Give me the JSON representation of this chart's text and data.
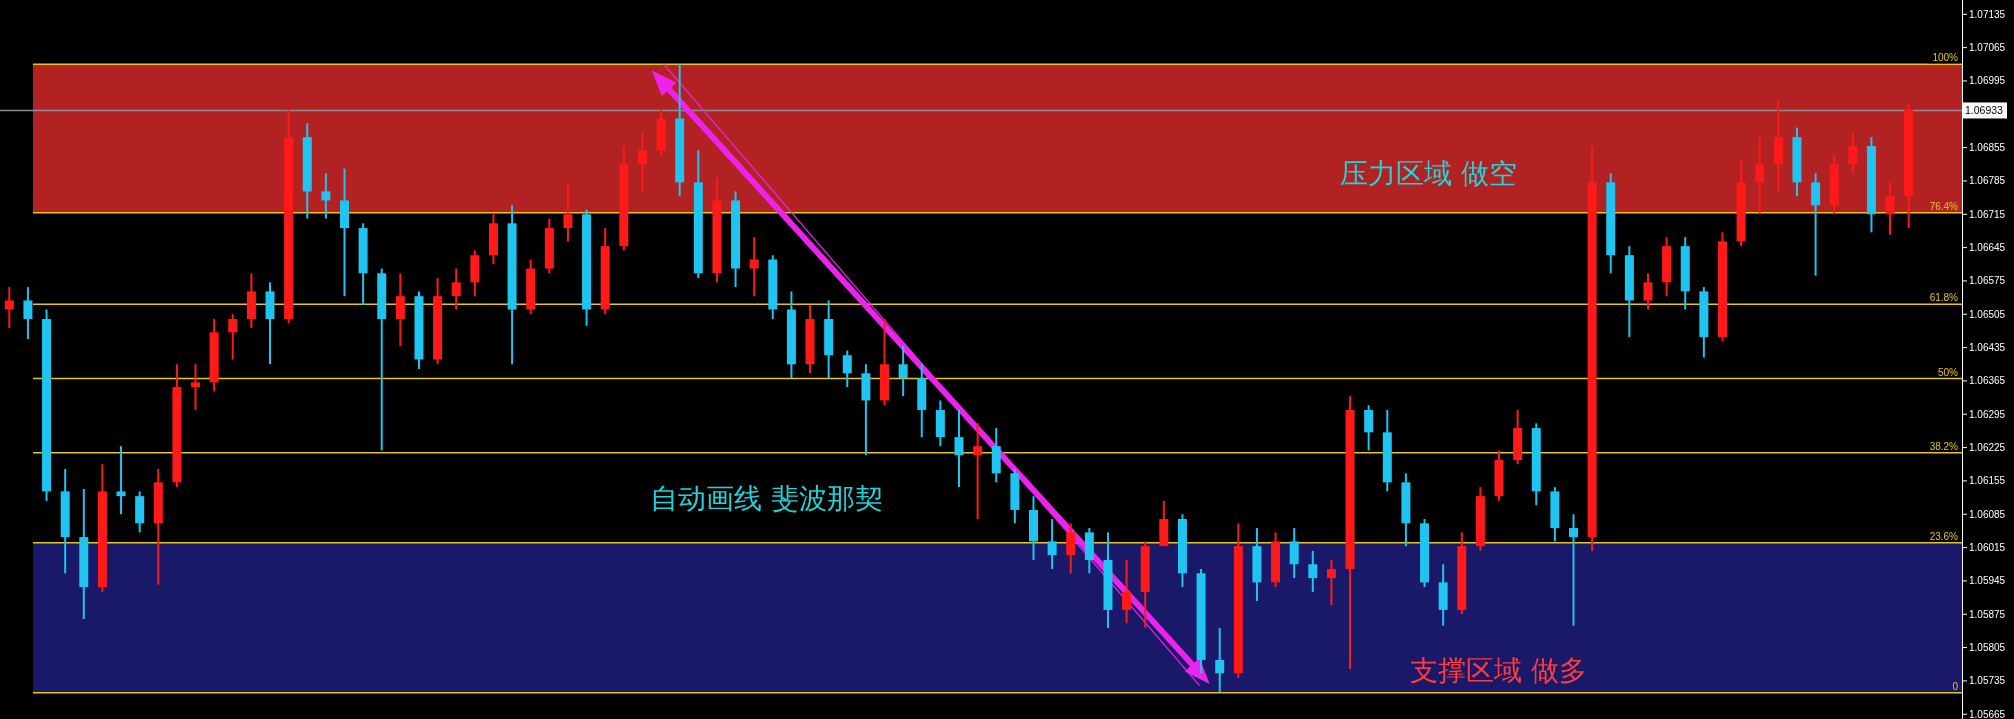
{
  "chart_data": {
    "type": "candlestick",
    "categories": [
      null,
      null,
      null,
      null,
      null,
      null,
      null,
      null,
      null,
      null,
      null,
      null,
      null,
      null,
      null,
      null,
      null,
      null,
      null,
      null,
      null,
      null,
      null,
      null,
      null,
      null,
      null,
      null,
      null,
      null,
      null,
      null,
      null,
      null,
      null,
      null,
      null,
      null,
      null,
      null,
      null,
      null,
      null,
      null,
      null,
      null,
      null,
      null,
      null,
      null,
      null,
      null,
      null,
      null,
      null,
      null,
      null,
      null,
      null,
      null,
      null,
      null,
      null,
      null,
      null,
      null,
      null,
      null,
      null,
      null,
      null,
      null,
      null,
      null,
      null,
      null,
      null,
      null,
      null,
      null,
      null,
      null,
      null,
      null,
      null,
      null,
      null,
      null,
      null,
      null,
      null,
      null,
      null,
      null,
      null,
      null,
      null,
      null,
      null,
      null,
      null,
      null,
      null
    ],
    "ohlc": [
      [
        1.06515,
        1.06562,
        1.06476,
        1.06534
      ],
      [
        1.06534,
        1.06562,
        1.06453,
        1.06495
      ],
      [
        1.06495,
        1.06515,
        1.06113,
        1.06133
      ],
      [
        1.06133,
        1.0618,
        1.05961,
        1.06037
      ],
      [
        1.06037,
        1.06138,
        1.05865,
        1.05932
      ],
      [
        1.05932,
        1.0619,
        1.05922,
        1.06133
      ],
      [
        1.06133,
        1.06228,
        1.06085,
        1.06123
      ],
      [
        1.06123,
        1.06133,
        1.06047,
        1.06066
      ],
      [
        1.06066,
        1.0618,
        1.05937,
        1.06152
      ],
      [
        1.06152,
        1.064,
        1.06142,
        1.06352
      ],
      [
        1.06352,
        1.064,
        1.06304,
        1.06362
      ],
      [
        1.06362,
        1.06495,
        1.06343,
        1.06467
      ],
      [
        1.06467,
        1.06505,
        1.0641,
        1.06495
      ],
      [
        1.06495,
        1.06591,
        1.06476,
        1.06553
      ],
      [
        1.06553,
        1.06572,
        1.064,
        1.06495
      ],
      [
        1.06495,
        1.06935,
        1.06486,
        1.06877
      ],
      [
        1.06877,
        1.06906,
        1.06706,
        1.06763
      ],
      [
        1.06763,
        1.06801,
        1.06706,
        1.06744
      ],
      [
        1.06744,
        1.06811,
        1.06543,
        1.06686
      ],
      [
        1.06686,
        1.06696,
        1.06524,
        1.06591
      ],
      [
        1.06591,
        1.06601,
        1.06219,
        1.06495
      ],
      [
        1.06495,
        1.06591,
        1.06438,
        1.06543
      ],
      [
        1.06543,
        1.06553,
        1.0639,
        1.0641
      ],
      [
        1.0641,
        1.06581,
        1.064,
        1.06543
      ],
      [
        1.06543,
        1.06601,
        1.06515,
        1.06572
      ],
      [
        1.06572,
        1.06639,
        1.06543,
        1.06629
      ],
      [
        1.06629,
        1.06715,
        1.0661,
        1.06696
      ],
      [
        1.06696,
        1.06734,
        1.064,
        1.06515
      ],
      [
        1.06515,
        1.0662,
        1.06505,
        1.06601
      ],
      [
        1.06601,
        1.06706,
        1.06591,
        1.06686
      ],
      [
        1.06686,
        1.06782,
        1.06658,
        1.06715
      ],
      [
        1.06715,
        1.06725,
        1.06481,
        1.06515
      ],
      [
        1.06515,
        1.06686,
        1.06505,
        1.06648
      ],
      [
        1.06648,
        1.06858,
        1.06639,
        1.0682
      ],
      [
        1.0682,
        1.06887,
        1.06763,
        1.06849
      ],
      [
        1.06849,
        1.06935,
        1.06839,
        1.06916
      ],
      [
        1.06916,
        1.0703,
        1.06753,
        1.06782
      ],
      [
        1.06782,
        1.06849,
        1.06581,
        1.06591
      ],
      [
        1.06591,
        1.06792,
        1.06572,
        1.06744
      ],
      [
        1.06744,
        1.06763,
        1.06562,
        1.06601
      ],
      [
        1.06601,
        1.06667,
        1.06543,
        1.0662
      ],
      [
        1.0662,
        1.06629,
        1.06495,
        1.06515
      ],
      [
        1.06515,
        1.06553,
        1.06371,
        1.064
      ],
      [
        1.064,
        1.06524,
        1.06381,
        1.06495
      ],
      [
        1.06495,
        1.06534,
        1.06371,
        1.06419
      ],
      [
        1.06419,
        1.06429,
        1.06352,
        1.06381
      ],
      [
        1.06381,
        1.064,
        1.06209,
        1.06324
      ],
      [
        1.06324,
        1.06495,
        1.06314,
        1.064
      ],
      [
        1.064,
        1.06438,
        1.06333,
        1.06371
      ],
      [
        1.06371,
        1.064,
        1.06247,
        1.06304
      ],
      [
        1.06304,
        1.06324,
        1.06228,
        1.06247
      ],
      [
        1.06247,
        1.06304,
        1.06142,
        1.06209
      ],
      [
        1.06209,
        1.06276,
        1.06075,
        1.06228
      ],
      [
        1.06228,
        1.06266,
        1.06152,
        1.06171
      ],
      [
        1.06171,
        1.0618,
        1.06066,
        1.06094
      ],
      [
        1.06094,
        1.06123,
        1.05989,
        1.06028
      ],
      [
        1.06028,
        1.06075,
        1.0597,
        1.05999
      ],
      [
        1.05999,
        1.06066,
        1.05961,
        1.06047
      ],
      [
        1.06047,
        1.06056,
        1.05961,
        1.05989
      ],
      [
        1.05989,
        1.06047,
        1.05846,
        1.05884
      ],
      [
        1.05884,
        1.05989,
        1.05856,
        1.05922
      ],
      [
        1.05922,
        1.06028,
        1.05846,
        1.06018
      ],
      [
        1.06018,
        1.06113,
        1.06018,
        1.06075
      ],
      [
        1.06075,
        1.06085,
        1.05932,
        1.05961
      ],
      [
        1.05961,
        1.0597,
        1.05751,
        1.05779
      ],
      [
        1.05779,
        1.05846,
        1.05712,
        1.05751
      ],
      [
        1.05751,
        1.06066,
        1.05741,
        1.06018
      ],
      [
        1.06018,
        1.06056,
        1.05903,
        1.05942
      ],
      [
        1.05942,
        1.06047,
        1.05932,
        1.06028
      ],
      [
        1.06028,
        1.06056,
        1.05951,
        1.0598
      ],
      [
        1.0598,
        1.06008,
        1.05922,
        1.05951
      ],
      [
        1.05951,
        1.05989,
        1.05894,
        1.0597
      ],
      [
        1.0597,
        1.06333,
        1.0576,
        1.06304
      ],
      [
        1.06304,
        1.06314,
        1.06219,
        1.06257
      ],
      [
        1.06257,
        1.06304,
        1.06133,
        1.06152
      ],
      [
        1.06152,
        1.06171,
        1.06018,
        1.06066
      ],
      [
        1.06066,
        1.06075,
        1.05932,
        1.05942
      ],
      [
        1.05942,
        1.0598,
        1.05851,
        1.05884
      ],
      [
        1.05884,
        1.06047,
        1.05875,
        1.06018
      ],
      [
        1.06018,
        1.06142,
        1.06008,
        1.06123
      ],
      [
        1.06123,
        1.06219,
        1.06113,
        1.06199
      ],
      [
        1.06199,
        1.06304,
        1.0619,
        1.06266
      ],
      [
        1.06266,
        1.06276,
        1.06104,
        1.06133
      ],
      [
        1.06133,
        1.06142,
        1.06028,
        1.06056
      ],
      [
        1.06056,
        1.06085,
        1.05851,
        1.06037
      ],
      [
        1.06037,
        1.06858,
        1.06008,
        1.06782
      ],
      [
        1.06782,
        1.06801,
        1.06591,
        1.06629
      ],
      [
        1.06629,
        1.06648,
        1.06457,
        1.06534
      ],
      [
        1.06534,
        1.06591,
        1.06515,
        1.06572
      ],
      [
        1.06572,
        1.06667,
        1.06543,
        1.06648
      ],
      [
        1.06648,
        1.06667,
        1.06515,
        1.06553
      ],
      [
        1.06553,
        1.06562,
        1.06414,
        1.06457
      ],
      [
        1.06457,
        1.06677,
        1.06448,
        1.06658
      ],
      [
        1.06658,
        1.0683,
        1.06648,
        1.06782
      ],
      [
        1.06782,
        1.06877,
        1.06715,
        1.0682
      ],
      [
        1.0682,
        1.06954,
        1.06763,
        1.06877
      ],
      [
        1.06877,
        1.06897,
        1.06753,
        1.06782
      ],
      [
        1.06782,
        1.06801,
        1.06586,
        1.06734
      ],
      [
        1.06734,
        1.06839,
        1.06715,
        1.0682
      ],
      [
        1.0682,
        1.06887,
        1.06801,
        1.06858
      ],
      [
        1.06858,
        1.06877,
        1.06677,
        1.06715
      ],
      [
        1.06715,
        1.06782,
        1.06672,
        1.06753
      ],
      [
        1.06753,
        1.06949,
        1.06686,
        1.06935
      ]
    ],
    "ylim": [
      1.05655,
      1.07165
    ],
    "yticks": [
      1.05665,
      1.05735,
      1.05805,
      1.05875,
      1.05945,
      1.06015,
      1.06085,
      1.06155,
      1.06225,
      1.06295,
      1.06365,
      1.06435,
      1.06505,
      1.06575,
      1.06645,
      1.06715,
      1.06785,
      1.06855,
      1.06995,
      1.07065,
      1.07135
    ],
    "tick_labels": "y",
    "bands": [
      {
        "axis": "y",
        "from": 1.06718,
        "to": 1.0703,
        "color": "#b22222"
      },
      {
        "axis": "y",
        "from": 1.0571,
        "to": 1.06025,
        "color": "#1a1869"
      }
    ],
    "ref_lines": [
      {
        "axis": "y",
        "value": 1.0703,
        "color": "#e6c619"
      },
      {
        "axis": "y",
        "value": 1.06718,
        "color": "#e6c619"
      },
      {
        "axis": "y",
        "value": 1.06526,
        "color": "#e6c619"
      },
      {
        "axis": "y",
        "value": 1.0637,
        "color": "#e6c619"
      },
      {
        "axis": "y",
        "value": 1.06214,
        "color": "#e6c619"
      },
      {
        "axis": "y",
        "value": 1.06025,
        "color": "#e6c619"
      },
      {
        "axis": "y",
        "value": 1.0571,
        "color": "#e6c619"
      },
      {
        "axis": "y",
        "value": 1.06933,
        "label": "1.06933",
        "color": "#8a8f99"
      }
    ],
    "annotations": [
      {
        "text": "100%",
        "y": 1.0703
      },
      {
        "text": "76.4%",
        "y": 1.06718
      },
      {
        "text": "61.8%",
        "y": 1.06526
      },
      {
        "text": "50%",
        "y": 1.0637
      },
      {
        "text": "38.2%",
        "y": 1.06214
      },
      {
        "text": "23.6%",
        "y": 1.06025
      },
      {
        "text": "0",
        "y": 1.0571
      },
      "压力区域 做空",
      "自动画线 斐波那契",
      "支撑区域 做多"
    ]
  }
}
